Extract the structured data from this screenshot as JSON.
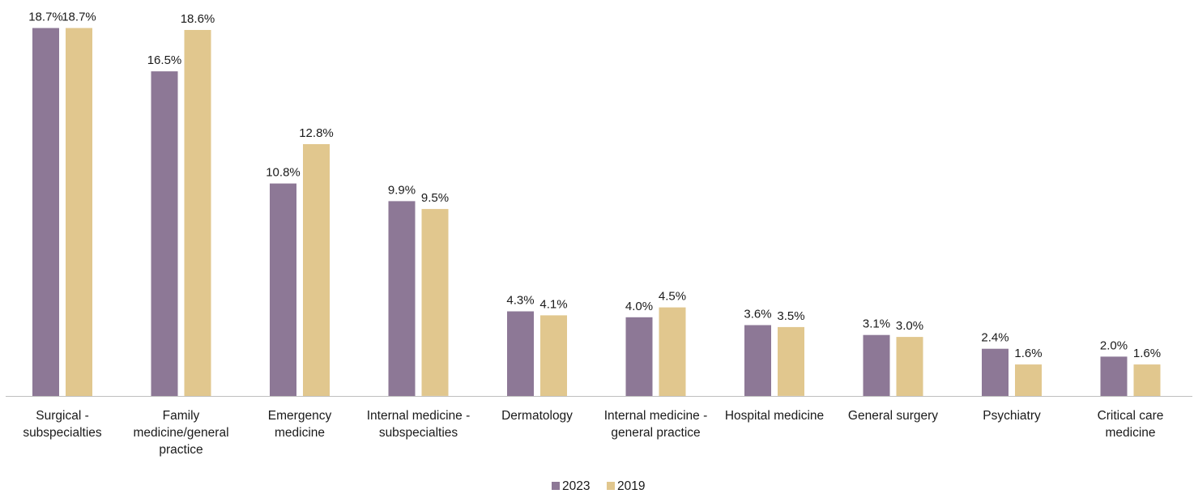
{
  "chart_data": {
    "type": "bar",
    "categories": [
      "Surgical - subspecialties",
      "Family medicine/general practice",
      "Emergency medicine",
      "Internal medicine - subspecialties",
      "Dermatology",
      "Internal medicine - general practice",
      "Hospital medicine",
      "General surgery",
      "Psychiatry",
      "Critical care medicine"
    ],
    "category_label_lines": [
      [
        "Surgical -",
        "subspecialties"
      ],
      [
        "Family",
        "medicine/general",
        "practice"
      ],
      [
        "Emergency",
        "medicine"
      ],
      [
        "Internal medicine -",
        "subspecialties"
      ],
      [
        "Dermatology"
      ],
      [
        "Internal medicine -",
        "general practice"
      ],
      [
        "Hospital medicine"
      ],
      [
        "General surgery"
      ],
      [
        "Psychiatry"
      ],
      [
        "Critical care",
        "medicine"
      ]
    ],
    "series": [
      {
        "name": "2023",
        "color": "#8d7896",
        "values": [
          18.7,
          16.5,
          10.8,
          9.9,
          4.3,
          4.0,
          3.6,
          3.1,
          2.4,
          2.0
        ],
        "labels": [
          "18.7%",
          "16.5%",
          "10.8%",
          "9.9%",
          "4.3%",
          "4.0%",
          "3.6%",
          "3.1%",
          "2.4%",
          "2.0%"
        ]
      },
      {
        "name": "2019",
        "color": "#e1c78e",
        "values": [
          18.7,
          18.6,
          12.8,
          9.5,
          4.1,
          4.5,
          3.5,
          3.0,
          1.6,
          1.6
        ],
        "labels": [
          "18.7%",
          "18.6%",
          "12.8%",
          "9.5%",
          "4.1%",
          "4.5%",
          "3.5%",
          "3.0%",
          "1.6%",
          "1.6%"
        ]
      }
    ],
    "ylim": [
      0,
      20
    ],
    "grid": false,
    "legend_position": "bottom-center",
    "axis_color": "#bfbfbf"
  }
}
